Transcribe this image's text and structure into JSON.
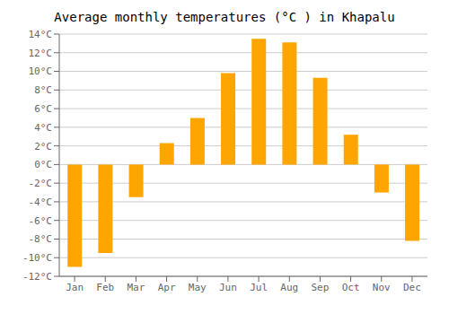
{
  "chart_data": {
    "type": "bar",
    "title": "Average monthly temperatures (°C ) in Khapalu",
    "categories": [
      "Jan",
      "Feb",
      "Mar",
      "Apr",
      "May",
      "Jun",
      "Jul",
      "Aug",
      "Sep",
      "Oct",
      "Nov",
      "Dec"
    ],
    "values": [
      -11,
      -9.5,
      -3.5,
      2.3,
      5.0,
      9.8,
      13.5,
      13.1,
      9.3,
      3.2,
      -3.0,
      -8.2
    ],
    "color": "#FFA500",
    "ylim": [
      -12,
      14
    ],
    "yticks": [
      {
        "value": -12,
        "label": "-12°C"
      },
      {
        "value": -10,
        "label": "-10°C"
      },
      {
        "value": -8,
        "label": "-8°C"
      },
      {
        "value": -6,
        "label": "-6°C"
      },
      {
        "value": -4,
        "label": "-4°C"
      },
      {
        "value": -2,
        "label": "-2°C"
      },
      {
        "value": 0,
        "label": "0°C"
      },
      {
        "value": 2,
        "label": "2°C"
      },
      {
        "value": 4,
        "label": "4°C"
      },
      {
        "value": 6,
        "label": "6°C"
      },
      {
        "value": 8,
        "label": "8°C"
      },
      {
        "value": 10,
        "label": "10°C"
      },
      {
        "value": 12,
        "label": "12°C"
      },
      {
        "value": 14,
        "label": "14°C"
      }
    ],
    "grid": true
  }
}
